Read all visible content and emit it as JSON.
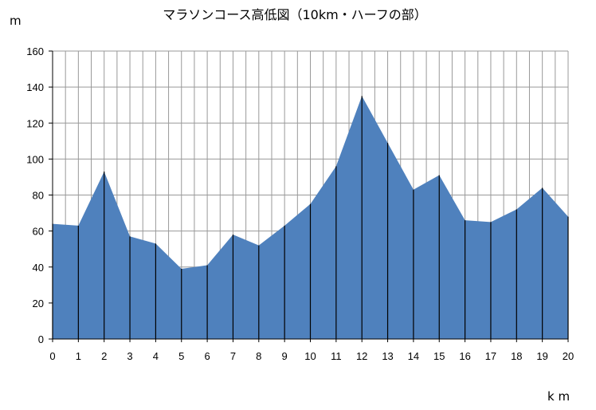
{
  "chart_data": {
    "type": "area",
    "title": "マラソンコース高低図（10km・ハーフの部）",
    "ylabel": "m",
    "xlabel": "k m",
    "x": [
      0,
      1,
      2,
      3,
      4,
      5,
      6,
      7,
      8,
      9,
      10,
      11,
      12,
      13,
      14,
      15,
      16,
      17,
      18,
      19,
      20
    ],
    "values": [
      64,
      63,
      93,
      57,
      53,
      39,
      41,
      58,
      52,
      63,
      75,
      96,
      135,
      109,
      83,
      91,
      66,
      65,
      72,
      84,
      68
    ],
    "xlim": [
      0,
      20
    ],
    "ylim": [
      0,
      160
    ],
    "y_ticks": [
      0,
      20,
      40,
      60,
      80,
      100,
      120,
      140,
      160
    ],
    "x_ticks": [
      0,
      1,
      2,
      3,
      4,
      5,
      6,
      7,
      8,
      9,
      10,
      11,
      12,
      13,
      14,
      15,
      16,
      17,
      18,
      19,
      20
    ],
    "minor_x_step": 0.5,
    "grid": true,
    "fill_color": "#4f81bd",
    "grid_color": "#999999"
  }
}
